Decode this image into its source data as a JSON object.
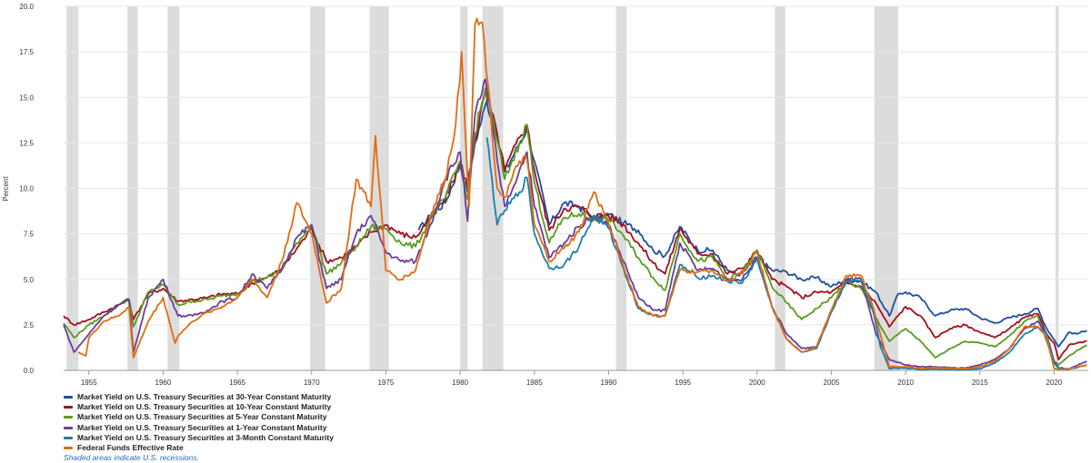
{
  "chart_data": {
    "type": "line",
    "ylabel": "Percent",
    "ylim": [
      0,
      20
    ],
    "xlim": [
      1953.3,
      2022.3
    ],
    "y_ticks": [
      "0.0",
      "2.5",
      "5.0",
      "7.5",
      "10.0",
      "12.5",
      "15.0",
      "17.5",
      "20.0"
    ],
    "x_ticks": [
      "1955",
      "1960",
      "1965",
      "1970",
      "1975",
      "1980",
      "1985",
      "1990",
      "1995",
      "2000",
      "2005",
      "2010",
      "2015",
      "2020"
    ],
    "grid": true,
    "legend_position": "bottom-left",
    "recessions": [
      [
        1953.5,
        1954.3
      ],
      [
        1957.6,
        1958.3
      ],
      [
        1960.3,
        1961.1
      ],
      [
        1969.9,
        1970.9
      ],
      [
        1973.9,
        1975.2
      ],
      [
        1980.0,
        1980.5
      ],
      [
        1981.5,
        1982.9
      ],
      [
        1990.5,
        1991.2
      ],
      [
        2001.2,
        2001.9
      ],
      [
        2007.9,
        2009.5
      ],
      [
        2020.1,
        2020.3
      ]
    ],
    "series": [
      {
        "name": "Market Yield on U.S. Treasury Securities at 30-Year Constant Maturity",
        "color": "#1f4e9e",
        "x": [
          1977.2,
          1978,
          1979,
          1980,
          1980.5,
          1981,
          1981.8,
          1982.5,
          1983,
          1984,
          1984.5,
          1985,
          1986,
          1987,
          1988,
          1989,
          1990,
          1991,
          1992,
          1993,
          1993.8,
          1994.8,
          1996,
          1997,
          1998,
          1998.8,
          2000,
          2001,
          2002,
          2003,
          2004,
          2005,
          2006,
          2007,
          2008,
          2008.9,
          2009.5,
          2010,
          2011,
          2012,
          2013,
          2014,
          2015,
          2016,
          2017,
          2018,
          2018.9,
          2019.5,
          2020,
          2020.3,
          2021,
          2021.5,
          2022.2
        ],
        "y": [
          7.7,
          8.5,
          9.2,
          11.3,
          9.8,
          12.5,
          14.8,
          12.8,
          10.9,
          12.5,
          13.3,
          11.5,
          8.0,
          9.2,
          9.0,
          8.3,
          8.6,
          8.1,
          7.7,
          6.6,
          6.3,
          7.9,
          6.6,
          6.6,
          5.5,
          5.2,
          6.2,
          5.5,
          5.4,
          5.0,
          5.1,
          4.6,
          5.0,
          4.9,
          4.3,
          3.0,
          4.2,
          4.3,
          4.0,
          3.0,
          3.3,
          3.4,
          2.9,
          2.6,
          2.9,
          3.1,
          3.4,
          2.3,
          1.7,
          1.3,
          2.1,
          2.0,
          2.2
        ]
      },
      {
        "name": "Market Yield on U.S. Treasury Securities at 10-Year Constant Maturity",
        "color": "#a30f1c",
        "x": [
          1953.3,
          1954,
          1955,
          1956,
          1957,
          1957.7,
          1958,
          1959,
          1960,
          1961,
          1962,
          1963,
          1964,
          1965,
          1966,
          1967,
          1968,
          1969,
          1970,
          1971,
          1972,
          1973,
          1974,
          1975,
          1976,
          1977,
          1978,
          1979,
          1980,
          1980.5,
          1981,
          1981.7,
          1982.5,
          1983,
          1984,
          1984.5,
          1985,
          1986,
          1987,
          1988,
          1989,
          1990,
          1991,
          1992,
          1993,
          1993.8,
          1994.8,
          1996,
          1997,
          1998,
          1999,
          2000,
          2001,
          2002,
          2003,
          2004,
          2005,
          2006,
          2007,
          2008,
          2008.9,
          2010,
          2011,
          2012,
          2013,
          2014,
          2015,
          2016,
          2017,
          2018,
          2018.9,
          2019.5,
          2020,
          2020.3,
          2021,
          2022.2
        ],
        "y": [
          3.0,
          2.5,
          2.8,
          3.2,
          3.6,
          3.9,
          2.8,
          4.2,
          4.5,
          3.8,
          3.9,
          4.0,
          4.2,
          4.2,
          4.8,
          5.1,
          5.6,
          6.7,
          7.8,
          6.0,
          6.2,
          6.8,
          7.6,
          8.0,
          7.5,
          7.3,
          8.4,
          9.4,
          11.4,
          10.2,
          12.6,
          15.3,
          13.0,
          11.0,
          12.8,
          13.5,
          11.0,
          7.7,
          8.9,
          9.0,
          8.5,
          8.5,
          8.0,
          7.0,
          5.9,
          5.3,
          7.8,
          6.4,
          6.4,
          5.3,
          5.6,
          6.6,
          5.0,
          4.6,
          4.0,
          4.3,
          4.3,
          4.8,
          4.6,
          3.7,
          2.4,
          3.5,
          3.0,
          1.8,
          2.3,
          2.5,
          2.1,
          1.8,
          2.3,
          2.9,
          3.1,
          2.0,
          1.5,
          0.6,
          1.4,
          1.6
        ]
      },
      {
        "name": "Market Yield on U.S. Treasury Securities at 5-Year Constant Maturity",
        "color": "#5a9a1e",
        "x": [
          1953.3,
          1954,
          1955,
          1956,
          1957,
          1957.7,
          1958,
          1959,
          1960,
          1961,
          1962,
          1963,
          1964,
          1965,
          1966,
          1967,
          1968,
          1969,
          1970,
          1971,
          1972,
          1973,
          1974,
          1975,
          1976,
          1977,
          1978,
          1979,
          1980,
          1980.5,
          1981,
          1981.7,
          1982.5,
          1983,
          1984,
          1984.5,
          1985,
          1986,
          1987,
          1988,
          1989,
          1990,
          1991,
          1992,
          1993,
          1993.8,
          1994.8,
          1996,
          1997,
          1998,
          1999,
          2000,
          2001,
          2002,
          2003,
          2004,
          2005,
          2006,
          2007,
          2008,
          2008.9,
          2010,
          2011,
          2012,
          2013,
          2014,
          2015,
          2016,
          2017,
          2018,
          2018.9,
          2019.5,
          2020,
          2020.3,
          2021,
          2022.2
        ],
        "y": [
          2.6,
          1.8,
          2.5,
          3.0,
          3.6,
          3.9,
          2.4,
          4.3,
          4.7,
          3.6,
          3.8,
          3.9,
          4.1,
          4.2,
          4.9,
          5.1,
          5.5,
          7.0,
          8.0,
          5.3,
          5.9,
          6.8,
          7.9,
          7.8,
          7.0,
          6.8,
          8.3,
          9.5,
          11.5,
          9.4,
          13.0,
          15.5,
          12.6,
          10.5,
          12.5,
          13.5,
          10.3,
          7.0,
          8.4,
          8.6,
          8.3,
          8.3,
          7.4,
          6.2,
          5.1,
          4.4,
          7.5,
          6.0,
          6.2,
          5.0,
          5.4,
          6.6,
          4.6,
          3.7,
          2.8,
          3.4,
          4.0,
          4.9,
          4.5,
          2.9,
          1.6,
          2.3,
          1.6,
          0.7,
          1.2,
          1.6,
          1.5,
          1.3,
          1.9,
          2.7,
          3.0,
          1.6,
          0.5,
          0.3,
          0.8,
          1.4
        ]
      },
      {
        "name": "Market Yield on U.S. Treasury Securities at 1-Year Constant Maturity",
        "color": "#6a3d9a",
        "x": [
          1953.3,
          1954,
          1955,
          1956,
          1957,
          1957.7,
          1958,
          1959,
          1960,
          1961,
          1962,
          1963,
          1964,
          1965,
          1966,
          1967,
          1968,
          1969,
          1970,
          1971,
          1972,
          1973,
          1974,
          1975,
          1976,
          1977,
          1978,
          1979,
          1980,
          1980.5,
          1981,
          1981.7,
          1982.5,
          1983,
          1984,
          1984.5,
          1985,
          1986,
          1987,
          1988,
          1989,
          1990,
          1991,
          1992,
          1993,
          1993.8,
          1994.8,
          1996,
          1997,
          1998,
          1999,
          2000,
          2001,
          2002,
          2003,
          2004,
          2005,
          2006,
          2007,
          2008,
          2008.9,
          2010,
          2011,
          2012,
          2013,
          2014,
          2015,
          2016,
          2017,
          2018,
          2018.9,
          2019.5,
          2020,
          2020.3,
          2021,
          2022.2
        ],
        "y": [
          2.5,
          1.0,
          2.0,
          3.0,
          3.6,
          3.9,
          1.0,
          4.0,
          5.0,
          3.0,
          3.0,
          3.3,
          3.8,
          4.0,
          5.3,
          4.5,
          5.6,
          7.3,
          8.0,
          4.5,
          5.0,
          7.5,
          8.5,
          6.5,
          6.0,
          6.0,
          8.0,
          10.5,
          12.0,
          8.2,
          14.0,
          16.0,
          11.5,
          9.0,
          11.0,
          12.0,
          9.0,
          6.2,
          7.0,
          7.9,
          8.5,
          8.0,
          6.0,
          4.0,
          3.3,
          3.3,
          7.0,
          5.5,
          5.6,
          5.0,
          5.0,
          6.2,
          3.5,
          2.0,
          1.2,
          1.3,
          3.3,
          5.0,
          5.0,
          2.0,
          0.6,
          0.3,
          0.2,
          0.2,
          0.15,
          0.12,
          0.3,
          0.6,
          1.2,
          2.3,
          2.7,
          2.0,
          0.5,
          0.15,
          0.07,
          0.5
        ]
      },
      {
        "name": "Market Yield on U.S. Treasury Securities at 3-Month Constant Maturity",
        "color": "#1c7fa8",
        "x": [
          1981.8,
          1982.5,
          1983,
          1984,
          1984.5,
          1985,
          1986,
          1987,
          1988,
          1989,
          1990,
          1991,
          1992,
          1993,
          1993.8,
          1994.8,
          1996,
          1997,
          1998,
          1999,
          2000,
          2001,
          2002,
          2003,
          2004,
          2005,
          2006,
          2007,
          2007.8,
          2008.3,
          2008.9,
          2010,
          2011,
          2012,
          2013,
          2014,
          2015,
          2016,
          2017,
          2018,
          2018.9,
          2019.5,
          2020,
          2020.3,
          2021,
          2022.2
        ],
        "y": [
          12.8,
          8.0,
          8.8,
          9.8,
          10.6,
          7.5,
          5.6,
          5.8,
          6.8,
          8.5,
          7.8,
          5.6,
          3.4,
          3.0,
          3.0,
          5.8,
          5.1,
          5.2,
          4.9,
          4.8,
          6.1,
          3.5,
          1.7,
          1.0,
          1.2,
          3.2,
          4.9,
          4.9,
          3.3,
          1.3,
          0.1,
          0.13,
          0.04,
          0.08,
          0.05,
          0.03,
          0.1,
          0.4,
          1.0,
          2.0,
          2.4,
          2.0,
          0.4,
          0.13,
          0.05,
          0.3
        ]
      },
      {
        "name": "Federal Funds Effective Rate",
        "color": "#e06c12",
        "x": [
          1954.3,
          1954.8,
          1955,
          1956,
          1957,
          1957.7,
          1958,
          1959,
          1960,
          1960.8,
          1961,
          1962,
          1963,
          1964,
          1965,
          1966,
          1967,
          1968,
          1969,
          1970,
          1971,
          1972,
          1973,
          1974,
          1974.3,
          1975,
          1976,
          1977,
          1978,
          1979,
          1979.7,
          1980.1,
          1980.6,
          1981,
          1981.5,
          1982.5,
          1983,
          1984,
          1984.5,
          1985,
          1986,
          1987,
          1988,
          1989,
          1990,
          1991,
          1992,
          1993,
          1993.8,
          1994.8,
          1996,
          1997,
          1998,
          1999,
          2000,
          2001,
          2002,
          2003,
          2004,
          2005,
          2006,
          2007,
          2007.8,
          2008.3,
          2008.9,
          2010,
          2011,
          2012,
          2013,
          2014,
          2015,
          2016,
          2017,
          2018,
          2018.9,
          2019.5,
          2020,
          2020.3,
          2021,
          2022.2
        ],
        "y": [
          1.0,
          0.8,
          1.8,
          2.7,
          3.0,
          3.5,
          0.7,
          2.7,
          4.0,
          1.5,
          1.9,
          2.7,
          3.2,
          3.5,
          4.0,
          5.0,
          4.0,
          6.0,
          9.2,
          7.5,
          3.7,
          4.5,
          10.5,
          9.0,
          12.9,
          5.5,
          5.0,
          5.5,
          8.5,
          10.5,
          13.5,
          17.5,
          9.0,
          19.0,
          19.1,
          10.0,
          9.5,
          11.5,
          11.6,
          8.0,
          6.0,
          6.7,
          7.6,
          9.8,
          8.1,
          5.7,
          3.5,
          3.0,
          3.0,
          5.5,
          5.4,
          5.5,
          4.9,
          5.3,
          6.5,
          3.5,
          1.7,
          1.0,
          1.3,
          3.3,
          5.2,
          5.2,
          3.5,
          2.0,
          0.2,
          0.2,
          0.1,
          0.15,
          0.1,
          0.1,
          0.2,
          0.5,
          1.2,
          2.4,
          2.4,
          1.8,
          0.1,
          0.05,
          0.08,
          0.3
        ]
      }
    ]
  },
  "legend": {
    "items": [
      {
        "label": "Market Yield on U.S. Treasury Securities at 30-Year Constant Maturity",
        "color": "#1f4e9e"
      },
      {
        "label": "Market Yield on U.S. Treasury Securities at 10-Year Constant Maturity",
        "color": "#a30f1c"
      },
      {
        "label": "Market Yield on U.S. Treasury Securities at 5-Year Constant Maturity",
        "color": "#5a9a1e"
      },
      {
        "label": "Market Yield on U.S. Treasury Securities at 1-Year Constant Maturity",
        "color": "#6a3d9a"
      },
      {
        "label": "Market Yield on U.S. Treasury Securities at 3-Month Constant Maturity",
        "color": "#1c7fa8"
      },
      {
        "label": "Federal Funds Effective Rate",
        "color": "#e06c12"
      }
    ],
    "note": "Shaded areas indicate U.S. recessions."
  }
}
